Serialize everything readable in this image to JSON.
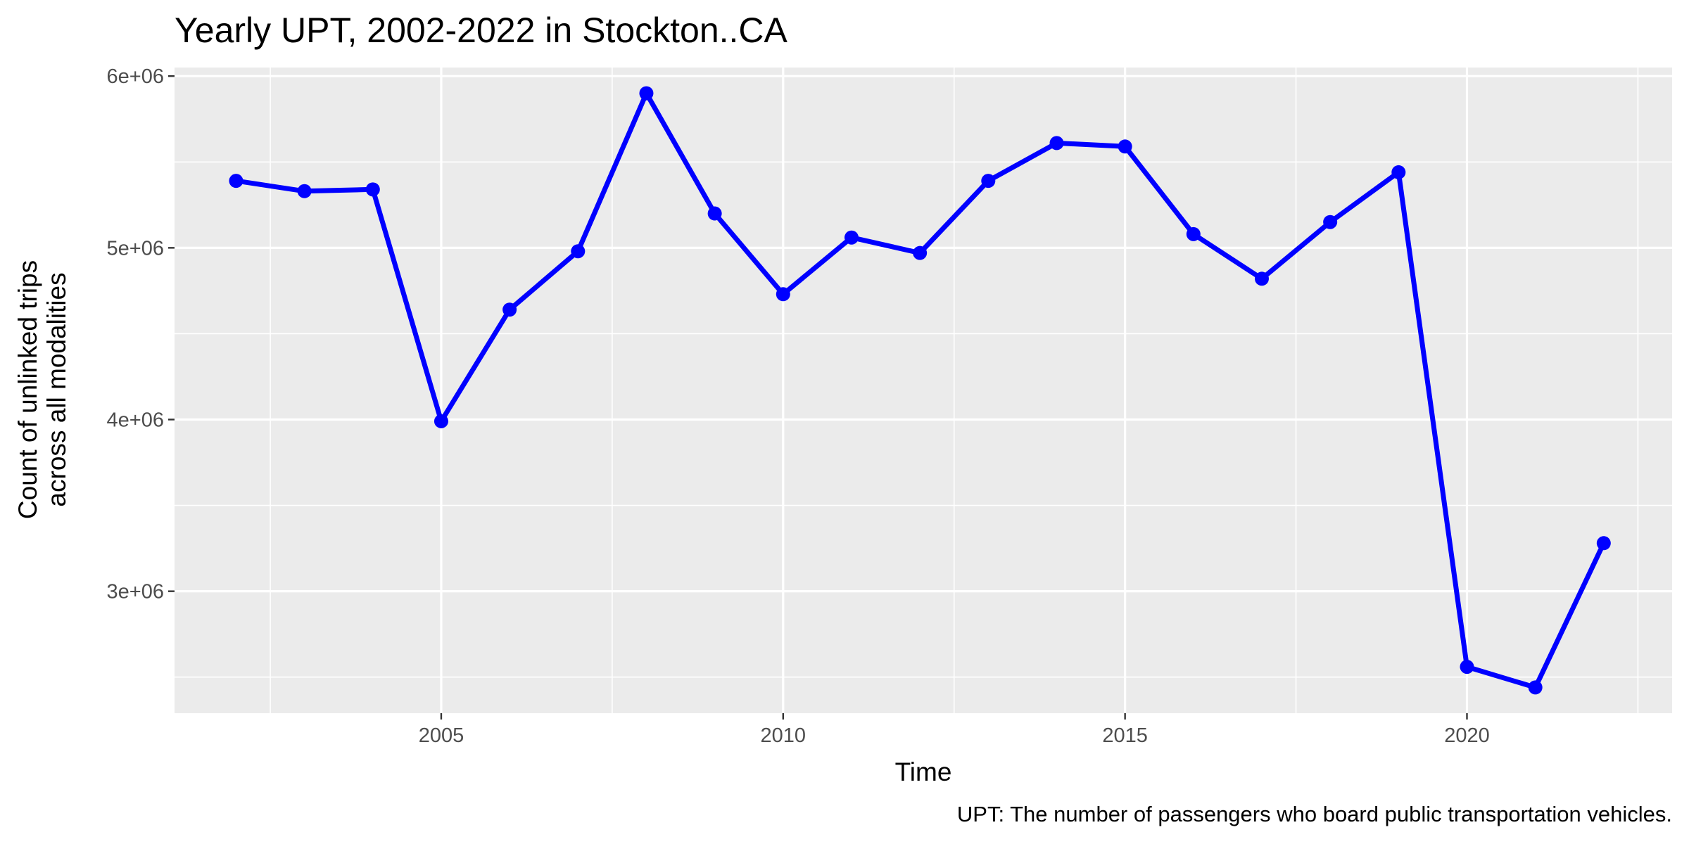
{
  "chart_data": {
    "type": "line",
    "title": "Yearly UPT, 2002-2022 in Stockton..CA",
    "xlabel": "Time",
    "ylabel_lines": [
      "Count of unlinked trips",
      "across all modalities"
    ],
    "caption": "UPT: The number of passengers who board public transportation vehicles.",
    "x": [
      2002,
      2003,
      2004,
      2005,
      2006,
      2007,
      2008,
      2009,
      2010,
      2011,
      2012,
      2013,
      2014,
      2015,
      2016,
      2017,
      2018,
      2019,
      2020,
      2021,
      2022
    ],
    "series": [
      {
        "values": [
          5390000,
          5330000,
          5340000,
          3990000,
          4640000,
          4980000,
          5900000,
          5200000,
          4730000,
          5060000,
          4970000,
          5390000,
          5610000,
          5590000,
          5080000,
          4820000,
          5150000,
          5440000,
          2560000,
          2440000,
          3280000
        ],
        "color": "#0000ff"
      }
    ],
    "xlim": [
      2001.1,
      2023.0
    ],
    "ylim": [
      2290000,
      6050000
    ],
    "xticks": [
      2005,
      2010,
      2015,
      2020
    ],
    "xtick_labels": [
      "2005",
      "2010",
      "2015",
      "2020"
    ],
    "yticks": [
      3000000,
      4000000,
      5000000,
      6000000
    ],
    "ytick_labels": [
      "3e+06",
      "4e+06",
      "5e+06",
      "6e+06"
    ],
    "panel_background": "#ebebeb",
    "grid": true,
    "grid_color": "#ffffff",
    "legend": "none"
  }
}
